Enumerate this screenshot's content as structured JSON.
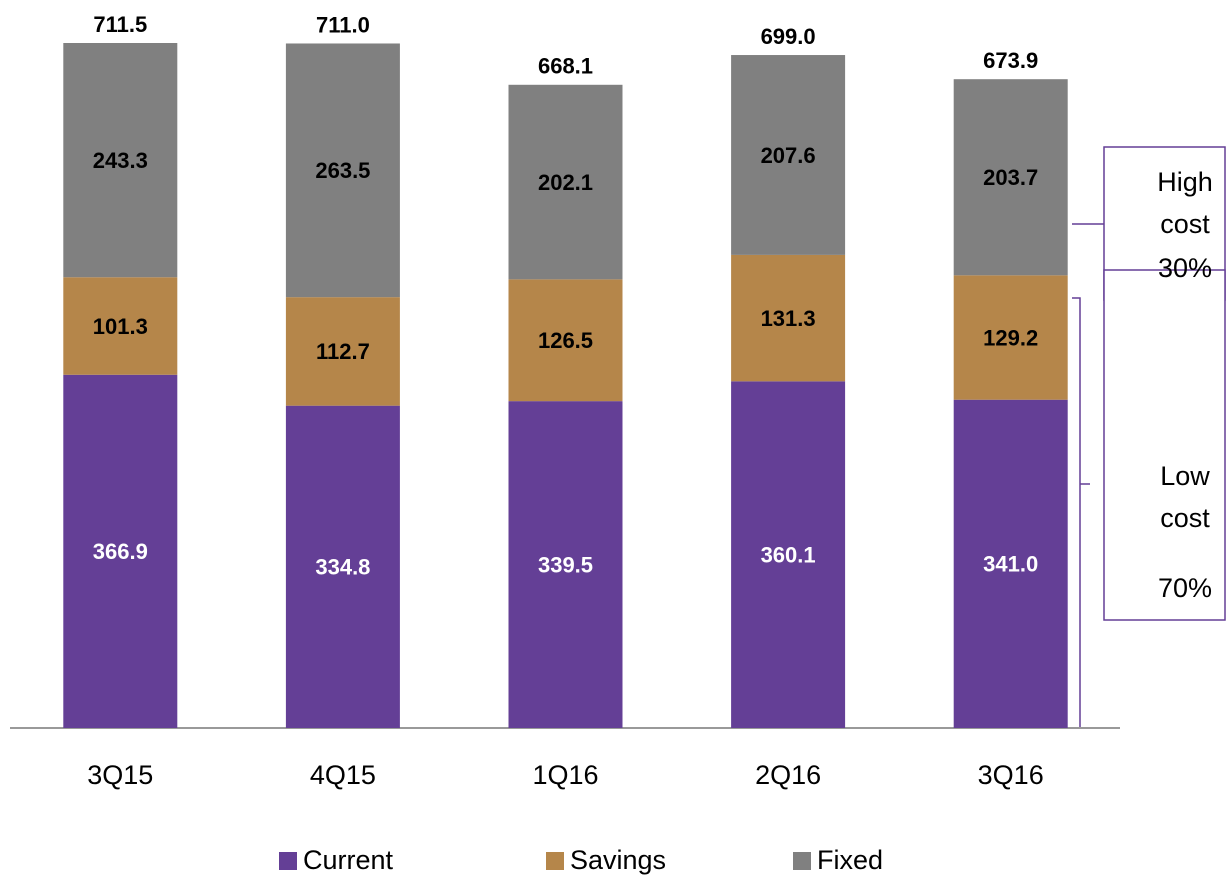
{
  "chart_data": {
    "type": "stacked_bar",
    "categories": [
      "3Q15",
      "4Q15",
      "1Q16",
      "2Q16",
      "3Q16"
    ],
    "series": [
      {
        "name": "Current",
        "color": "#643f96",
        "values": [
          366.9,
          334.8,
          339.5,
          360.1,
          341.0
        ]
      },
      {
        "name": "Savings",
        "color": "#b5864a",
        "values": [
          101.3,
          112.7,
          126.5,
          131.3,
          129.2
        ]
      },
      {
        "name": "Fixed",
        "color": "#808080",
        "values": [
          243.3,
          263.5,
          202.1,
          207.6,
          203.7
        ]
      }
    ],
    "totals": [
      711.5,
      711.0,
      668.1,
      699.0,
      673.9
    ],
    "totals_labels": [
      "711.5",
      "711.0",
      "668.1",
      "699.0",
      "673.9"
    ],
    "value_labels": [
      [
        "366.9",
        "334.8",
        "339.5",
        "360.1",
        "341.0"
      ],
      [
        "101.3",
        "112.7",
        "126.5",
        "131.3",
        "129.2"
      ],
      [
        "243.3",
        "263.5",
        "202.1",
        "207.6",
        "203.7"
      ]
    ],
    "annotations": [
      [
        "High",
        "cost",
        "30%"
      ],
      [
        "Low",
        "cost",
        "70%"
      ]
    ],
    "legend": "bottom"
  }
}
